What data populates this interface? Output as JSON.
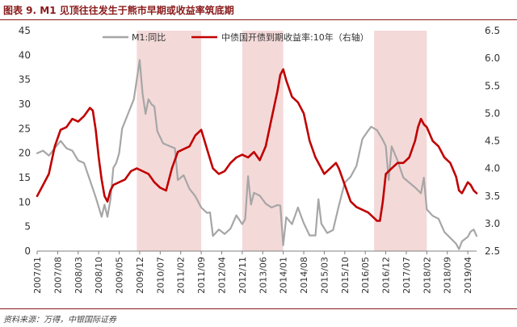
{
  "title": "图表 9. M1 见顶往往发生于熊市早期或收益率筑底期",
  "source": "资料来源：万得，中银国际证券",
  "colors": {
    "m1": "#a6a6a6",
    "yield": "#c00000",
    "shade": "#f4d9d9",
    "axis": "#808080"
  },
  "chart_data": {
    "type": "line",
    "title": "",
    "xlabel": "",
    "ylabel": "",
    "x_tick_labels": [
      "2007/01",
      "2007/08",
      "2008/03",
      "2008/10",
      "2009/05",
      "2009/12",
      "2010/07",
      "2011/02",
      "2011/09",
      "2012/04",
      "2012/11",
      "2013/06",
      "2014/01",
      "2014/08",
      "2015/03",
      "2015/10",
      "2016/05",
      "2016/12",
      "2017/07",
      "2018/02",
      "2018/09",
      "2019/04"
    ],
    "x_start": "2007/01",
    "x_end": "2019/07",
    "y_left": {
      "min": 0,
      "max": 45,
      "step": 5
    },
    "y_right": {
      "min": 2.5,
      "max": 6.5,
      "step": 0.5
    },
    "legend": {
      "position": "top",
      "m1": "M1:同比",
      "yield": "中债国开债到期收益率:10年（右轴）"
    },
    "shaded_periods": [
      [
        "2009/11",
        "2011/09"
      ],
      [
        "2012/11",
        "2014/01"
      ],
      [
        "2016/08",
        "2018/02"
      ]
    ],
    "series": [
      {
        "name": "M1:同比",
        "axis": "left",
        "points": [
          [
            "2007/01",
            20
          ],
          [
            "2007/03",
            20.5
          ],
          [
            "2007/05",
            19.5
          ],
          [
            "2007/07",
            21
          ],
          [
            "2007/09",
            22.5
          ],
          [
            "2007/11",
            21
          ],
          [
            "2008/01",
            20.5
          ],
          [
            "2008/03",
            18.5
          ],
          [
            "2008/05",
            18
          ],
          [
            "2008/07",
            14.5
          ],
          [
            "2008/09",
            11
          ],
          [
            "2008/10",
            9
          ],
          [
            "2008/11",
            7
          ],
          [
            "2008/12",
            9.5
          ],
          [
            "2009/01",
            7
          ],
          [
            "2009/02",
            10.5
          ],
          [
            "2009/03",
            17
          ],
          [
            "2009/04",
            18
          ],
          [
            "2009/05",
            20
          ],
          [
            "2009/06",
            25
          ],
          [
            "2009/08",
            28
          ],
          [
            "2009/10",
            31
          ],
          [
            "2009/11",
            35
          ],
          [
            "2009/12",
            39
          ],
          [
            "2010/01",
            32
          ],
          [
            "2010/02",
            28
          ],
          [
            "2010/03",
            31
          ],
          [
            "2010/04",
            30
          ],
          [
            "2010/05",
            29.5
          ],
          [
            "2010/06",
            24.5
          ],
          [
            "2010/08",
            22
          ],
          [
            "2010/10",
            21.5
          ],
          [
            "2010/12",
            21
          ],
          [
            "2011/01",
            14.5
          ],
          [
            "2011/03",
            15.5
          ],
          [
            "2011/05",
            12.7
          ],
          [
            "2011/07",
            11.2
          ],
          [
            "2011/09",
            8.9
          ],
          [
            "2011/11",
            7.8
          ],
          [
            "2011/12",
            7.9
          ],
          [
            "2012/01",
            3.1
          ],
          [
            "2012/03",
            4.4
          ],
          [
            "2012/05",
            3.5
          ],
          [
            "2012/07",
            4.6
          ],
          [
            "2012/09",
            7.3
          ],
          [
            "2012/11",
            5.5
          ],
          [
            "2012/12",
            6.5
          ],
          [
            "2013/01",
            15.3
          ],
          [
            "2013/02",
            9.5
          ],
          [
            "2013/03",
            11.9
          ],
          [
            "2013/05",
            11.3
          ],
          [
            "2013/07",
            9.7
          ],
          [
            "2013/09",
            8.9
          ],
          [
            "2013/11",
            9.4
          ],
          [
            "2013/12",
            9.3
          ],
          [
            "2014/01",
            1.2
          ],
          [
            "2014/02",
            6.9
          ],
          [
            "2014/04",
            5.5
          ],
          [
            "2014/06",
            8.9
          ],
          [
            "2014/08",
            5.7
          ],
          [
            "2014/10",
            3.2
          ],
          [
            "2014/12",
            3.2
          ],
          [
            "2015/01",
            10.6
          ],
          [
            "2015/02",
            5.6
          ],
          [
            "2015/04",
            3.7
          ],
          [
            "2015/06",
            4.3
          ],
          [
            "2015/08",
            9.3
          ],
          [
            "2015/10",
            14
          ],
          [
            "2015/12",
            15.2
          ],
          [
            "2016/02",
            17.4
          ],
          [
            "2016/04",
            22.9
          ],
          [
            "2016/06",
            24.6
          ],
          [
            "2016/07",
            25.4
          ],
          [
            "2016/09",
            24.7
          ],
          [
            "2016/11",
            22.7
          ],
          [
            "2016/12",
            21.4
          ],
          [
            "2017/01",
            14.5
          ],
          [
            "2017/02",
            21.4
          ],
          [
            "2017/04",
            18.5
          ],
          [
            "2017/06",
            15
          ],
          [
            "2017/08",
            14
          ],
          [
            "2017/10",
            13
          ],
          [
            "2017/12",
            11.8
          ],
          [
            "2018/01",
            15
          ],
          [
            "2018/02",
            8.5
          ],
          [
            "2018/04",
            7.2
          ],
          [
            "2018/06",
            6.6
          ],
          [
            "2018/08",
            3.9
          ],
          [
            "2018/10",
            2.7
          ],
          [
            "2018/12",
            1.5
          ],
          [
            "2019/01",
            0.4
          ],
          [
            "2019/02",
            2
          ],
          [
            "2019/04",
            2.9
          ],
          [
            "2019/05",
            4
          ],
          [
            "2019/06",
            4.4
          ],
          [
            "2019/07",
            3.1
          ]
        ]
      },
      {
        "name": "中债国开债到期收益率:10年（右轴）",
        "axis": "right",
        "points": [
          [
            "2007/01",
            3.5
          ],
          [
            "2007/03",
            3.7
          ],
          [
            "2007/05",
            3.9
          ],
          [
            "2007/07",
            4.4
          ],
          [
            "2007/09",
            4.7
          ],
          [
            "2007/11",
            4.75
          ],
          [
            "2008/01",
            4.9
          ],
          [
            "2008/03",
            4.85
          ],
          [
            "2008/05",
            4.95
          ],
          [
            "2008/07",
            5.1
          ],
          [
            "2008/08",
            5.05
          ],
          [
            "2008/09",
            4.7
          ],
          [
            "2008/10",
            4.2
          ],
          [
            "2008/11",
            3.8
          ],
          [
            "2008/12",
            3.5
          ],
          [
            "2009/01",
            3.4
          ],
          [
            "2009/02",
            3.6
          ],
          [
            "2009/03",
            3.7
          ],
          [
            "2009/05",
            3.75
          ],
          [
            "2009/07",
            3.8
          ],
          [
            "2009/09",
            3.95
          ],
          [
            "2009/11",
            4.0
          ],
          [
            "2010/01",
            3.95
          ],
          [
            "2010/03",
            3.9
          ],
          [
            "2010/05",
            3.75
          ],
          [
            "2010/07",
            3.65
          ],
          [
            "2010/09",
            3.6
          ],
          [
            "2010/11",
            4.0
          ],
          [
            "2011/01",
            4.3
          ],
          [
            "2011/03",
            4.35
          ],
          [
            "2011/05",
            4.4
          ],
          [
            "2011/07",
            4.6
          ],
          [
            "2011/09",
            4.7
          ],
          [
            "2011/11",
            4.35
          ],
          [
            "2012/01",
            4.0
          ],
          [
            "2012/03",
            3.9
          ],
          [
            "2012/05",
            3.95
          ],
          [
            "2012/07",
            4.1
          ],
          [
            "2012/09",
            4.2
          ],
          [
            "2012/11",
            4.25
          ],
          [
            "2013/01",
            4.2
          ],
          [
            "2013/03",
            4.3
          ],
          [
            "2013/05",
            4.15
          ],
          [
            "2013/07",
            4.4
          ],
          [
            "2013/09",
            4.9
          ],
          [
            "2013/11",
            5.4
          ],
          [
            "2013/12",
            5.7
          ],
          [
            "2014/01",
            5.8
          ],
          [
            "2014/02",
            5.6
          ],
          [
            "2014/04",
            5.3
          ],
          [
            "2014/06",
            5.2
          ],
          [
            "2014/08",
            5.0
          ],
          [
            "2014/10",
            4.5
          ],
          [
            "2014/12",
            4.2
          ],
          [
            "2015/01",
            4.1
          ],
          [
            "2015/03",
            3.9
          ],
          [
            "2015/05",
            4.0
          ],
          [
            "2015/07",
            4.1
          ],
          [
            "2015/08",
            4.0
          ],
          [
            "2015/10",
            3.7
          ],
          [
            "2015/12",
            3.4
          ],
          [
            "2016/02",
            3.3
          ],
          [
            "2016/04",
            3.25
          ],
          [
            "2016/06",
            3.2
          ],
          [
            "2016/08",
            3.1
          ],
          [
            "2016/09",
            3.05
          ],
          [
            "2016/10",
            3.05
          ],
          [
            "2016/11",
            3.4
          ],
          [
            "2016/12",
            3.9
          ],
          [
            "2017/02",
            4.0
          ],
          [
            "2017/04",
            4.1
          ],
          [
            "2017/06",
            4.1
          ],
          [
            "2017/08",
            4.2
          ],
          [
            "2017/10",
            4.5
          ],
          [
            "2017/11",
            4.75
          ],
          [
            "2017/12",
            4.9
          ],
          [
            "2018/01",
            4.8
          ],
          [
            "2018/02",
            4.75
          ],
          [
            "2018/04",
            4.5
          ],
          [
            "2018/06",
            4.4
          ],
          [
            "2018/08",
            4.2
          ],
          [
            "2018/10",
            4.1
          ],
          [
            "2018/12",
            3.85
          ],
          [
            "2019/01",
            3.6
          ],
          [
            "2019/02",
            3.55
          ],
          [
            "2019/04",
            3.75
          ],
          [
            "2019/05",
            3.7
          ],
          [
            "2019/06",
            3.6
          ],
          [
            "2019/07",
            3.55
          ]
        ]
      }
    ]
  }
}
